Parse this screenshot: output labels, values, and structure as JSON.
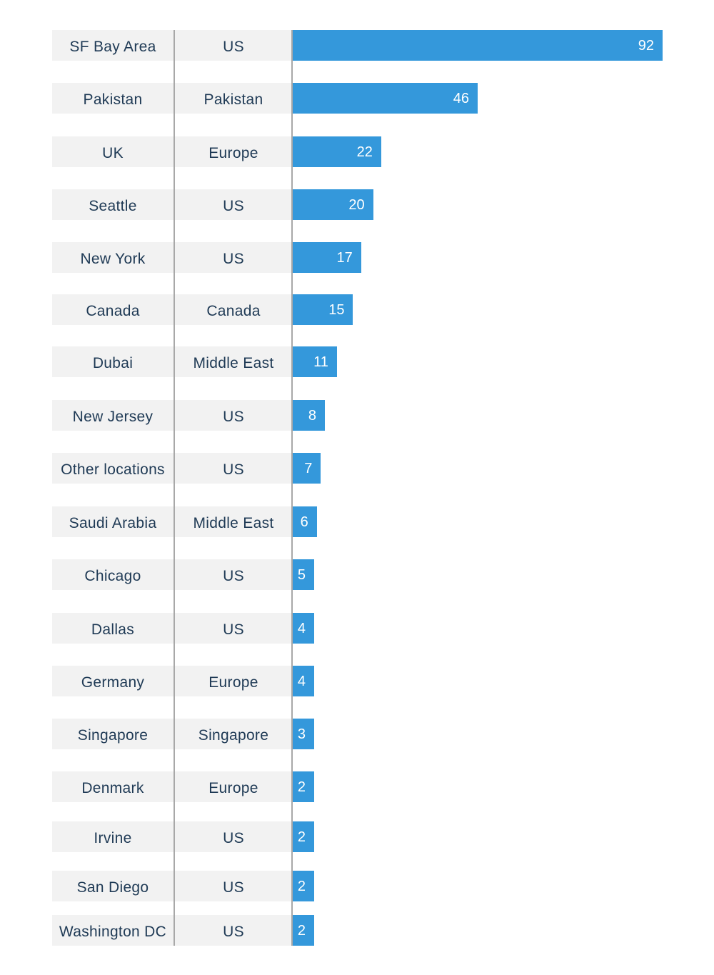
{
  "chart_data": {
    "type": "bar",
    "orientation": "horizontal",
    "columns": [
      "location",
      "region"
    ],
    "rows": [
      {
        "location": "SF Bay Area",
        "region": "US",
        "value": 92
      },
      {
        "location": "Pakistan",
        "region": "Pakistan",
        "value": 46
      },
      {
        "location": "UK",
        "region": "Europe",
        "value": 22
      },
      {
        "location": "Seattle",
        "region": "US",
        "value": 20
      },
      {
        "location": "New York",
        "region": "US",
        "value": 17
      },
      {
        "location": "Canada",
        "region": "Canada",
        "value": 15
      },
      {
        "location": "Dubai",
        "region": "Middle East",
        "value": 11
      },
      {
        "location": "New Jersey",
        "region": "US",
        "value": 8
      },
      {
        "location": "Other locations",
        "region": "US",
        "value": 7
      },
      {
        "location": "Saudi Arabia",
        "region": "Middle East",
        "value": 6
      },
      {
        "location": "Chicago",
        "region": "US",
        "value": 5
      },
      {
        "location": "Dallas",
        "region": "US",
        "value": 4
      },
      {
        "location": "Germany",
        "region": "Europe",
        "value": 4
      },
      {
        "location": "Singapore",
        "region": "Singapore",
        "value": 3
      },
      {
        "location": "Denmark",
        "region": "Europe",
        "value": 2
      },
      {
        "location": "Irvine",
        "region": "US",
        "value": 2
      },
      {
        "location": "San Diego",
        "region": "US",
        "value": 2
      },
      {
        "location": "Washington DC",
        "region": "US",
        "value": 2
      }
    ],
    "xlim": [
      0,
      92
    ],
    "grid": false,
    "legend": "none",
    "title": "",
    "xlabel": "",
    "ylabel": ""
  },
  "colors": {
    "bar": "#3498db",
    "row_background": "#f2f2f2",
    "text": "#1f3a55",
    "divider": "#a8a8a8",
    "bar_label": "#ffffff"
  }
}
